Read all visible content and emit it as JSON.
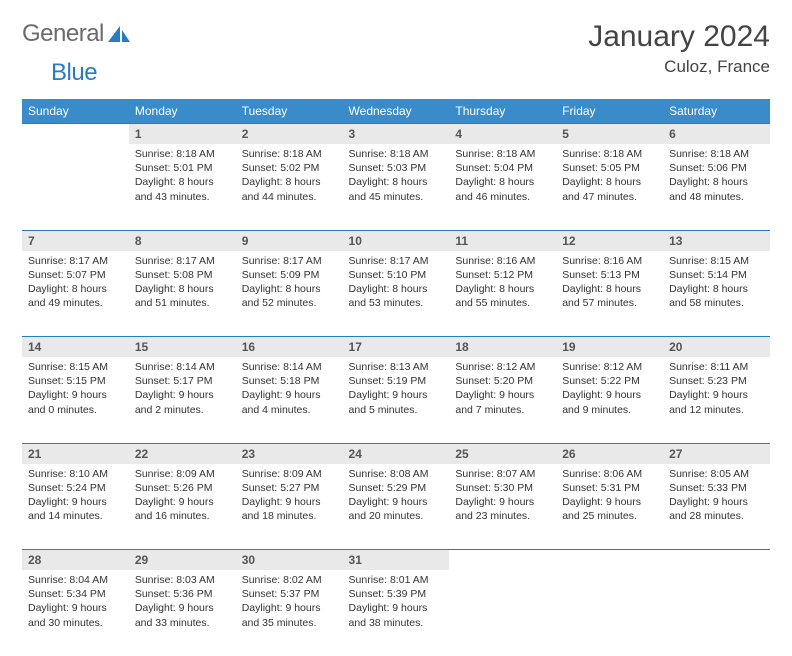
{
  "brand": {
    "text_gray": "General",
    "text_blue": "Blue"
  },
  "title": "January 2024",
  "location": "Culoz, France",
  "colors": {
    "header_bg": "#3a8bc9",
    "rule": "#2a7bbf",
    "daynum_bg": "#e9e9e9",
    "text": "#333333",
    "logo_gray": "#6b6b6b",
    "logo_blue": "#2a7bbf"
  },
  "weekdays": [
    "Sunday",
    "Monday",
    "Tuesday",
    "Wednesday",
    "Thursday",
    "Friday",
    "Saturday"
  ],
  "weeks": [
    [
      null,
      {
        "n": "1",
        "sr": "8:18 AM",
        "ss": "5:01 PM",
        "dl": "8 hours and 43 minutes."
      },
      {
        "n": "2",
        "sr": "8:18 AM",
        "ss": "5:02 PM",
        "dl": "8 hours and 44 minutes."
      },
      {
        "n": "3",
        "sr": "8:18 AM",
        "ss": "5:03 PM",
        "dl": "8 hours and 45 minutes."
      },
      {
        "n": "4",
        "sr": "8:18 AM",
        "ss": "5:04 PM",
        "dl": "8 hours and 46 minutes."
      },
      {
        "n": "5",
        "sr": "8:18 AM",
        "ss": "5:05 PM",
        "dl": "8 hours and 47 minutes."
      },
      {
        "n": "6",
        "sr": "8:18 AM",
        "ss": "5:06 PM",
        "dl": "8 hours and 48 minutes."
      }
    ],
    [
      {
        "n": "7",
        "sr": "8:17 AM",
        "ss": "5:07 PM",
        "dl": "8 hours and 49 minutes."
      },
      {
        "n": "8",
        "sr": "8:17 AM",
        "ss": "5:08 PM",
        "dl": "8 hours and 51 minutes."
      },
      {
        "n": "9",
        "sr": "8:17 AM",
        "ss": "5:09 PM",
        "dl": "8 hours and 52 minutes."
      },
      {
        "n": "10",
        "sr": "8:17 AM",
        "ss": "5:10 PM",
        "dl": "8 hours and 53 minutes."
      },
      {
        "n": "11",
        "sr": "8:16 AM",
        "ss": "5:12 PM",
        "dl": "8 hours and 55 minutes."
      },
      {
        "n": "12",
        "sr": "8:16 AM",
        "ss": "5:13 PM",
        "dl": "8 hours and 57 minutes."
      },
      {
        "n": "13",
        "sr": "8:15 AM",
        "ss": "5:14 PM",
        "dl": "8 hours and 58 minutes."
      }
    ],
    [
      {
        "n": "14",
        "sr": "8:15 AM",
        "ss": "5:15 PM",
        "dl": "9 hours and 0 minutes."
      },
      {
        "n": "15",
        "sr": "8:14 AM",
        "ss": "5:17 PM",
        "dl": "9 hours and 2 minutes."
      },
      {
        "n": "16",
        "sr": "8:14 AM",
        "ss": "5:18 PM",
        "dl": "9 hours and 4 minutes."
      },
      {
        "n": "17",
        "sr": "8:13 AM",
        "ss": "5:19 PM",
        "dl": "9 hours and 5 minutes."
      },
      {
        "n": "18",
        "sr": "8:12 AM",
        "ss": "5:20 PM",
        "dl": "9 hours and 7 minutes."
      },
      {
        "n": "19",
        "sr": "8:12 AM",
        "ss": "5:22 PM",
        "dl": "9 hours and 9 minutes."
      },
      {
        "n": "20",
        "sr": "8:11 AM",
        "ss": "5:23 PM",
        "dl": "9 hours and 12 minutes."
      }
    ],
    [
      {
        "n": "21",
        "sr": "8:10 AM",
        "ss": "5:24 PM",
        "dl": "9 hours and 14 minutes."
      },
      {
        "n": "22",
        "sr": "8:09 AM",
        "ss": "5:26 PM",
        "dl": "9 hours and 16 minutes."
      },
      {
        "n": "23",
        "sr": "8:09 AM",
        "ss": "5:27 PM",
        "dl": "9 hours and 18 minutes."
      },
      {
        "n": "24",
        "sr": "8:08 AM",
        "ss": "5:29 PM",
        "dl": "9 hours and 20 minutes."
      },
      {
        "n": "25",
        "sr": "8:07 AM",
        "ss": "5:30 PM",
        "dl": "9 hours and 23 minutes."
      },
      {
        "n": "26",
        "sr": "8:06 AM",
        "ss": "5:31 PM",
        "dl": "9 hours and 25 minutes."
      },
      {
        "n": "27",
        "sr": "8:05 AM",
        "ss": "5:33 PM",
        "dl": "9 hours and 28 minutes."
      }
    ],
    [
      {
        "n": "28",
        "sr": "8:04 AM",
        "ss": "5:34 PM",
        "dl": "9 hours and 30 minutes."
      },
      {
        "n": "29",
        "sr": "8:03 AM",
        "ss": "5:36 PM",
        "dl": "9 hours and 33 minutes."
      },
      {
        "n": "30",
        "sr": "8:02 AM",
        "ss": "5:37 PM",
        "dl": "9 hours and 35 minutes."
      },
      {
        "n": "31",
        "sr": "8:01 AM",
        "ss": "5:39 PM",
        "dl": "9 hours and 38 minutes."
      },
      null,
      null,
      null
    ]
  ],
  "labels": {
    "sunrise": "Sunrise:",
    "sunset": "Sunset:",
    "daylight": "Daylight:"
  }
}
